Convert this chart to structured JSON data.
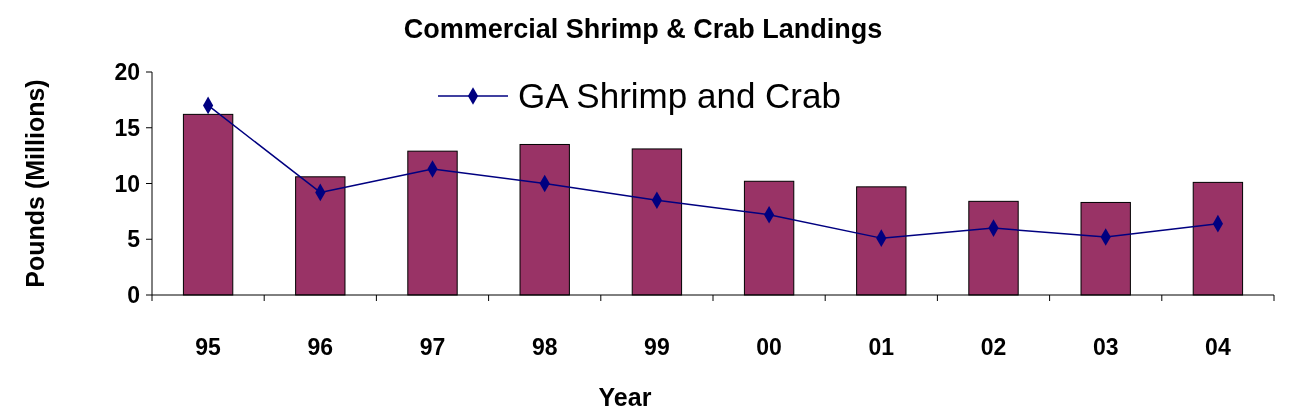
{
  "chart_data": {
    "type": "bar",
    "title": "Commercial Shrimp & Crab Landings",
    "xlabel": "Year",
    "ylabel": "Pounds (Millions)",
    "categories": [
      "95",
      "96",
      "97",
      "98",
      "99",
      "00",
      "01",
      "02",
      "03",
      "04"
    ],
    "series": [
      {
        "color": "#993366",
        "values": [
          16.2,
          10.6,
          12.9,
          13.5,
          13.1,
          10.2,
          9.7,
          8.4,
          8.3,
          10.1
        ]
      },
      {
        "type": "line",
        "name": "GA Shrimp and Crab",
        "color": "#000080",
        "marker": "diamond",
        "values": [
          17.0,
          9.2,
          11.3,
          10.0,
          8.5,
          7.2,
          5.1,
          6.0,
          5.2,
          6.4
        ]
      }
    ],
    "ylim": [
      0,
      20
    ],
    "yticks": [
      0,
      5,
      10,
      15,
      20
    ],
    "grid": false,
    "legend": "top"
  }
}
